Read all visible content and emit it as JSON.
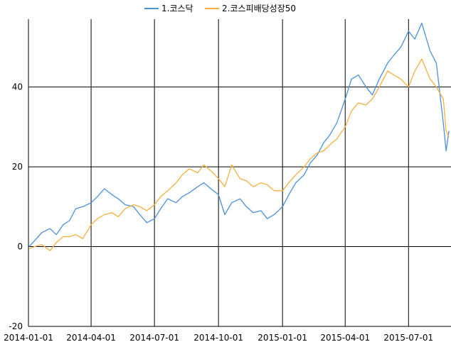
{
  "chart_data": {
    "type": "line",
    "title": "",
    "xlabel": "",
    "ylabel": "",
    "x_range": [
      "2014-01-01",
      "2015-08-31"
    ],
    "ylim": [
      -20,
      57
    ],
    "grid": true,
    "legend_position": "top-center",
    "x_ticks": [
      "2014-01-01",
      "2014-04-01",
      "2014-07-01",
      "2014-10-01",
      "2015-01-01",
      "2015-04-01",
      "2015-07-01"
    ],
    "y_ticks": [
      -20,
      0,
      20,
      40
    ],
    "series": [
      {
        "name": "1.코스닥",
        "color": "#4a90d9",
        "points": [
          [
            "2014-01-02",
            0
          ],
          [
            "2014-01-10",
            1.5
          ],
          [
            "2014-01-20",
            3.5
          ],
          [
            "2014-02-01",
            4.5
          ],
          [
            "2014-02-10",
            3
          ],
          [
            "2014-02-20",
            5.5
          ],
          [
            "2014-03-01",
            6.5
          ],
          [
            "2014-03-10",
            9.5
          ],
          [
            "2014-03-20",
            10
          ],
          [
            "2014-04-01",
            11
          ],
          [
            "2014-04-10",
            12.5
          ],
          [
            "2014-04-20",
            14.5
          ],
          [
            "2014-05-01",
            13
          ],
          [
            "2014-05-10",
            12
          ],
          [
            "2014-05-20",
            10.5
          ],
          [
            "2014-06-01",
            10
          ],
          [
            "2014-06-10",
            8
          ],
          [
            "2014-06-20",
            6
          ],
          [
            "2014-07-01",
            7
          ],
          [
            "2014-07-10",
            9.5
          ],
          [
            "2014-07-20",
            12
          ],
          [
            "2014-08-01",
            11
          ],
          [
            "2014-08-10",
            12.5
          ],
          [
            "2014-08-20",
            13.5
          ],
          [
            "2014-09-01",
            15
          ],
          [
            "2014-09-10",
            16
          ],
          [
            "2014-09-20",
            14.5
          ],
          [
            "2014-10-01",
            13
          ],
          [
            "2014-10-10",
            8
          ],
          [
            "2014-10-20",
            11
          ],
          [
            "2014-11-01",
            12
          ],
          [
            "2014-11-10",
            10
          ],
          [
            "2014-11-20",
            8.5
          ],
          [
            "2014-12-01",
            9
          ],
          [
            "2014-12-10",
            7
          ],
          [
            "2014-12-20",
            8
          ],
          [
            "2015-01-01",
            10
          ],
          [
            "2015-01-10",
            13
          ],
          [
            "2015-01-20",
            16
          ],
          [
            "2015-02-01",
            18
          ],
          [
            "2015-02-10",
            21
          ],
          [
            "2015-02-20",
            23
          ],
          [
            "2015-03-01",
            26
          ],
          [
            "2015-03-10",
            28
          ],
          [
            "2015-03-20",
            31
          ],
          [
            "2015-04-01",
            37
          ],
          [
            "2015-04-10",
            42
          ],
          [
            "2015-04-20",
            43
          ],
          [
            "2015-05-01",
            40
          ],
          [
            "2015-05-10",
            38
          ],
          [
            "2015-05-20",
            42
          ],
          [
            "2015-06-01",
            46
          ],
          [
            "2015-06-10",
            48
          ],
          [
            "2015-06-20",
            50
          ],
          [
            "2015-07-01",
            54
          ],
          [
            "2015-07-10",
            52
          ],
          [
            "2015-07-20",
            56
          ],
          [
            "2015-08-01",
            49
          ],
          [
            "2015-08-10",
            46
          ],
          [
            "2015-08-20",
            31
          ],
          [
            "2015-08-24",
            24
          ],
          [
            "2015-08-28",
            29
          ]
        ]
      },
      {
        "name": "2.코스피배당성장50",
        "color": "#f5b041",
        "points": [
          [
            "2014-01-02",
            -0.5
          ],
          [
            "2014-01-10",
            0
          ],
          [
            "2014-01-20",
            0.5
          ],
          [
            "2014-02-01",
            -1
          ],
          [
            "2014-02-10",
            1
          ],
          [
            "2014-02-20",
            2.5
          ],
          [
            "2014-03-01",
            2.5
          ],
          [
            "2014-03-10",
            3
          ],
          [
            "2014-03-20",
            2
          ],
          [
            "2014-04-01",
            5.5
          ],
          [
            "2014-04-10",
            7
          ],
          [
            "2014-04-20",
            8
          ],
          [
            "2014-05-01",
            8.5
          ],
          [
            "2014-05-10",
            7.5
          ],
          [
            "2014-05-20",
            9.5
          ],
          [
            "2014-06-01",
            10.5
          ],
          [
            "2014-06-10",
            10
          ],
          [
            "2014-06-20",
            9
          ],
          [
            "2014-07-01",
            10.5
          ],
          [
            "2014-07-10",
            12.5
          ],
          [
            "2014-07-20",
            14
          ],
          [
            "2014-08-01",
            16
          ],
          [
            "2014-08-10",
            18
          ],
          [
            "2014-08-20",
            19.5
          ],
          [
            "2014-09-01",
            18.5
          ],
          [
            "2014-09-10",
            20.5
          ],
          [
            "2014-09-20",
            19
          ],
          [
            "2014-10-01",
            17
          ],
          [
            "2014-10-10",
            15
          ],
          [
            "2014-10-20",
            20.5
          ],
          [
            "2014-11-01",
            17
          ],
          [
            "2014-11-10",
            16.5
          ],
          [
            "2014-11-20",
            15
          ],
          [
            "2014-12-01",
            16
          ],
          [
            "2014-12-10",
            15.5
          ],
          [
            "2014-12-20",
            14
          ],
          [
            "2015-01-01",
            14
          ],
          [
            "2015-01-10",
            16
          ],
          [
            "2015-01-20",
            18
          ],
          [
            "2015-02-01",
            20
          ],
          [
            "2015-02-10",
            22
          ],
          [
            "2015-02-20",
            23.5
          ],
          [
            "2015-03-01",
            24
          ],
          [
            "2015-03-10",
            25.5
          ],
          [
            "2015-03-20",
            27
          ],
          [
            "2015-04-01",
            30
          ],
          [
            "2015-04-10",
            34
          ],
          [
            "2015-04-20",
            36
          ],
          [
            "2015-05-01",
            35.5
          ],
          [
            "2015-05-10",
            37
          ],
          [
            "2015-05-20",
            40
          ],
          [
            "2015-06-01",
            44
          ],
          [
            "2015-06-10",
            43
          ],
          [
            "2015-06-20",
            42
          ],
          [
            "2015-07-01",
            40
          ],
          [
            "2015-07-10",
            44
          ],
          [
            "2015-07-20",
            47
          ],
          [
            "2015-08-01",
            42
          ],
          [
            "2015-08-10",
            40
          ],
          [
            "2015-08-20",
            37
          ],
          [
            "2015-08-24",
            29
          ],
          [
            "2015-08-28",
            27.5
          ]
        ]
      }
    ]
  }
}
